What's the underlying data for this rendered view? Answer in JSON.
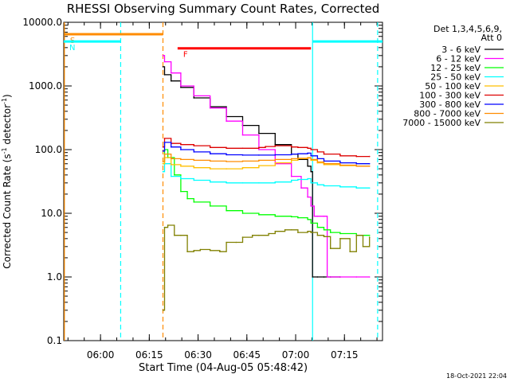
{
  "chart_data": {
    "type": "line",
    "title": "RHESSI Observing Summary Count Rates, Corrected",
    "xlabel": "Start Time (04-Aug-05 05:48:42)",
    "ylabel_main": "Corrected Count Rate (s",
    "ylabel_sup": "-1",
    "ylabel_mid": " detector",
    "ylabel_sup2": "-1",
    "ylabel_end": ")",
    "y_scale": "log",
    "ylim": [
      0.1,
      10000
    ],
    "xlim_minutes": [
      0,
      98
    ],
    "x_ticks": [
      {
        "minute": 11.3,
        "label": "06:00"
      },
      {
        "minute": 26.3,
        "label": "06:15"
      },
      {
        "minute": 41.3,
        "label": "06:30"
      },
      {
        "minute": 56.3,
        "label": "06:45"
      },
      {
        "minute": 71.3,
        "label": "07:00"
      },
      {
        "minute": 86.3,
        "label": "07:15"
      }
    ],
    "y_ticks": [
      {
        "value": 0.1,
        "label": "0.1"
      },
      {
        "value": 1,
        "label": "1.0"
      },
      {
        "value": 10,
        "label": "10.0"
      },
      {
        "value": 100,
        "label": "100.0"
      },
      {
        "value": 1000,
        "label": "1000.0"
      },
      {
        "value": 10000,
        "label": "10000.0"
      }
    ],
    "legend": {
      "header_line1": "Det 1,3,4,5,6,9,",
      "header_line2": "Att 0",
      "placement": "right"
    },
    "series": [
      {
        "name": "3 - 6 keV",
        "color": "#000000",
        "x": [
          30.5,
          31,
          33,
          36,
          40,
          45,
          50,
          55,
          60,
          65,
          70,
          72,
          75,
          76,
          76.5,
          78,
          80,
          82,
          85
        ],
        "y": [
          2000,
          1500,
          1200,
          950,
          650,
          470,
          330,
          240,
          180,
          120,
          85,
          70,
          55,
          45,
          1.0,
          1.0,
          1.0,
          1.0,
          1.0
        ]
      },
      {
        "name": "6 - 12 keV",
        "color": "#ff00ff",
        "x": [
          30.5,
          31,
          33,
          36,
          40,
          45,
          50,
          55,
          60,
          65,
          70,
          73,
          75,
          76,
          77,
          78,
          80,
          81,
          82,
          85,
          90,
          94
        ],
        "y": [
          3000,
          2400,
          1600,
          1000,
          700,
          450,
          280,
          170,
          100,
          60,
          38,
          25,
          18,
          13,
          9,
          9,
          9,
          1.0,
          1.0,
          1.0,
          1.0,
          1.0
        ]
      },
      {
        "name": "12 - 25 keV",
        "color": "#00ff00",
        "x": [
          30.5,
          31,
          32,
          34,
          36,
          38,
          40,
          45,
          50,
          55,
          60,
          65,
          70,
          72,
          75,
          76,
          78,
          80,
          82,
          85,
          90,
          94
        ],
        "y": [
          60,
          100,
          75,
          40,
          22,
          17,
          15,
          13,
          11,
          10,
          9.5,
          9,
          8.8,
          8.5,
          8,
          7,
          6,
          5.5,
          5,
          4.8,
          4.5,
          4.5
        ]
      },
      {
        "name": "25 - 50 keV",
        "color": "#00ffff",
        "x": [
          30.5,
          31,
          33,
          36,
          40,
          45,
          50,
          55,
          60,
          65,
          70,
          72,
          75,
          76,
          78,
          80,
          85,
          90,
          94
        ],
        "y": [
          45,
          60,
          38,
          35,
          33,
          31,
          30,
          30,
          30,
          31,
          33,
          34,
          35,
          30,
          28,
          27,
          26,
          25,
          25
        ]
      },
      {
        "name": "50 - 100 keV",
        "color": "#ffbf00",
        "x": [
          30.5,
          31,
          33,
          36,
          40,
          45,
          50,
          55,
          60,
          65,
          70,
          72,
          75,
          76,
          78,
          80,
          85,
          90,
          94
        ],
        "y": [
          60,
          75,
          58,
          55,
          52,
          50,
          50,
          52,
          56,
          62,
          68,
          72,
          75,
          68,
          62,
          58,
          56,
          55,
          55
        ]
      },
      {
        "name": "100 - 300 keV",
        "color": "#dd0000",
        "x": [
          30.5,
          31,
          33,
          36,
          40,
          45,
          50,
          55,
          60,
          62,
          65,
          70,
          72,
          75,
          76,
          78,
          80,
          85,
          90,
          94
        ],
        "y": [
          110,
          150,
          125,
          120,
          115,
          108,
          105,
          105,
          108,
          112,
          115,
          110,
          108,
          105,
          100,
          92,
          85,
          80,
          78,
          78
        ]
      },
      {
        "name": "300 - 800 keV",
        "color": "#0000ff",
        "x": [
          30.5,
          31,
          33,
          36,
          40,
          45,
          50,
          55,
          60,
          65,
          70,
          72,
          75,
          76,
          78,
          80,
          85,
          90,
          94
        ],
        "y": [
          95,
          130,
          110,
          100,
          92,
          86,
          83,
          82,
          82,
          83,
          85,
          86,
          88,
          80,
          72,
          66,
          62,
          60,
          60
        ]
      },
      {
        "name": "800 - 7000 keV",
        "color": "#ff8c00",
        "x": [
          30.5,
          31,
          33,
          36,
          40,
          45,
          50,
          55,
          60,
          65,
          70,
          72,
          75,
          76,
          78,
          80,
          85,
          90,
          94
        ],
        "y": [
          65,
          85,
          72,
          70,
          68,
          66,
          65,
          66,
          68,
          70,
          72,
          73,
          74,
          70,
          64,
          60,
          57,
          55,
          55
        ]
      },
      {
        "name": "7000 - 15000 keV",
        "color": "#808000",
        "x": [
          30.5,
          31,
          32,
          34,
          36,
          38,
          40,
          42,
          45,
          48,
          50,
          53,
          55,
          58,
          60,
          63,
          65,
          68,
          70,
          72,
          75,
          76,
          78,
          80,
          82,
          85,
          88,
          90,
          92,
          94
        ],
        "y": [
          0.3,
          6,
          6.5,
          4.5,
          4.5,
          2.5,
          2.6,
          2.7,
          2.6,
          2.5,
          3.5,
          3.5,
          4.2,
          4.5,
          4.5,
          4.8,
          5.2,
          5.5,
          5.5,
          5.0,
          5.2,
          5.0,
          4.5,
          4.3,
          2.8,
          4.0,
          2.5,
          4.5,
          3.0,
          4.2
        ]
      }
    ],
    "flag_bars": [
      {
        "label": "S",
        "color": "#ff8c00",
        "x_start": 0.2,
        "x_end": 30.5,
        "y_value": 6500
      },
      {
        "label": "N",
        "color": "#00ffff",
        "x_start": -2,
        "x_end": 17.5,
        "y_value": 5000
      },
      {
        "label": "",
        "color": "#00ffff",
        "x_start": 76.5,
        "x_end": 98,
        "y_value": 5000
      },
      {
        "label": "F",
        "color": "#ff0000",
        "x_start": 35,
        "x_end": 76,
        "y_value": 3900
      }
    ],
    "vertical_markers": [
      {
        "x": 0.2,
        "color": "#ff8c00",
        "style": "solid"
      },
      {
        "x": 17.5,
        "color": "#00ffff",
        "style": "dashed"
      },
      {
        "x": 30.5,
        "color": "#ff8c00",
        "style": "dashed"
      },
      {
        "x": 76.5,
        "color": "#00ffff",
        "style": "solid"
      },
      {
        "x": 96.5,
        "color": "#00ffff",
        "style": "dashed"
      }
    ]
  },
  "footer": {
    "timestamp": "18-Oct-2021 22:04"
  }
}
